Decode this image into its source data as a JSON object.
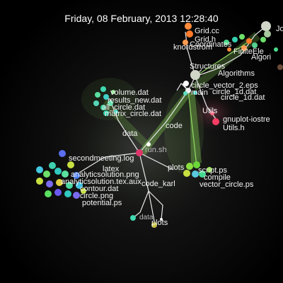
{
  "header": {
    "timestamp": "Friday, 08 February, 2013 12:28:40"
  },
  "labels": {
    "grid_cc": "Grid.cc",
    "grid_h": "Grid.h",
    "coordinates": "Coordinates",
    "knordstrom": "knordstrom",
    "finite_ele": "FiniteEle",
    "algori": "Algori",
    "jo": "Jo",
    "structures": "Structures",
    "algorithms": "Algorithms",
    "circle_vector": "circle_vector_2.eps",
    "main": "main",
    "circle_1d_a": "circle_1d.dat",
    "circle_1d_b": "circle_1d.dat",
    "utils": "Utils",
    "gnuplot": "gnuplot-iostre",
    "utils_h": "Utils.h",
    "volume": "volume.dat",
    "results_new": "results_new.dat",
    "all_circle": "all_circle.dat",
    "matrix_circle": "matrix_circle.dat",
    "code": "code",
    "data": "data",
    "run_sh": "run.sh",
    "secondmeeting": "secondmeeting.log",
    "latex": "latex",
    "analytic_png": "analyticsolution.png",
    "analytic_aux": "analyticsolution.tex.aux",
    "contour": "contour.dat",
    "code_karl": "code_karl",
    "circle_png": "circle.png",
    "potential": "potential.ps",
    "plots": "plots",
    "script_ps": "script.ps",
    "compile": "compile",
    "vector_circle": "vector_circle.ps",
    "data_bottom": "data",
    "plots_bottom": "plots"
  },
  "colors": {
    "background": "#000000",
    "edge": "#e8e8e8",
    "glow": "#9be86a",
    "run_node": "#e0356b"
  }
}
